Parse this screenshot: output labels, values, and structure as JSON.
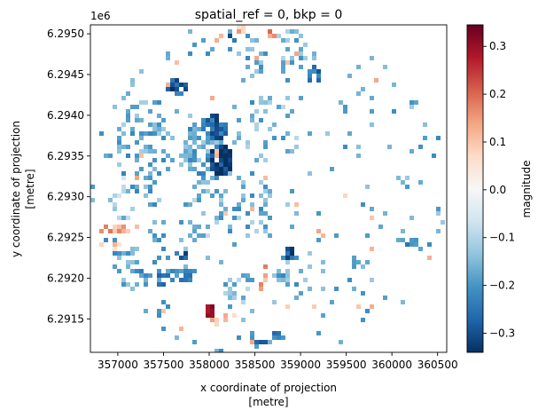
{
  "chart_data": {
    "type": "heatmap",
    "title": "spatial_ref = 0, bkp = 0",
    "xlabel": "x coordinate of projection",
    "xlabel_unit": "[metre]",
    "ylabel": "y coordinate of projection",
    "ylabel_unit": "[metre]",
    "y_offset_label": "1e6",
    "xlim": [
      356700,
      360600
    ],
    "ylim": [
      6.29109,
      6.29511
    ],
    "x_ticks": [
      {
        "value": 357000,
        "label": "357000"
      },
      {
        "value": 357500,
        "label": "357500"
      },
      {
        "value": 358000,
        "label": "358000"
      },
      {
        "value": 358500,
        "label": "358500"
      },
      {
        "value": 359000,
        "label": "359000"
      },
      {
        "value": 359500,
        "label": "359500"
      },
      {
        "value": 360000,
        "label": "360000"
      },
      {
        "value": 360500,
        "label": "360500"
      }
    ],
    "y_ticks": [
      {
        "value": 6.2915,
        "label": "6.2915"
      },
      {
        "value": 6.292,
        "label": "6.2920"
      },
      {
        "value": 6.2925,
        "label": "6.2925"
      },
      {
        "value": 6.293,
        "label": "6.2930"
      },
      {
        "value": 6.2935,
        "label": "6.2935"
      },
      {
        "value": 6.294,
        "label": "6.2940"
      },
      {
        "value": 6.2945,
        "label": "6.2945"
      },
      {
        "value": 6.295,
        "label": "6.2950"
      }
    ],
    "colorbar": {
      "label": "magnitude",
      "vmin": -0.34,
      "vmax": 0.345,
      "colormap": "RdBu_r",
      "ticks": [
        {
          "value": -0.3,
          "label": "−0.3"
        },
        {
          "value": -0.2,
          "label": "−0.2"
        },
        {
          "value": -0.1,
          "label": "−0.1"
        },
        {
          "value": 0.0,
          "label": "0.0"
        },
        {
          "value": 0.1,
          "label": "0.1"
        },
        {
          "value": 0.2,
          "label": "0.2"
        },
        {
          "value": 0.3,
          "label": "0.3"
        }
      ]
    },
    "patches": [
      {
        "x": 357650,
        "y": 6.29435,
        "rx": 110,
        "ry": 0.0001,
        "value": -0.28,
        "density": 0.85
      },
      {
        "x": 358050,
        "y": 6.29382,
        "rx": 140,
        "ry": 0.00018,
        "value": -0.27,
        "density": 0.9
      },
      {
        "x": 358100,
        "y": 6.29345,
        "rx": 170,
        "ry": 0.0002,
        "value": -0.32,
        "density": 0.9
      },
      {
        "x": 357950,
        "y": 6.29355,
        "rx": 230,
        "ry": 0.0004,
        "value": -0.18,
        "density": 0.55
      },
      {
        "x": 357300,
        "y": 6.29355,
        "rx": 320,
        "ry": 0.0007,
        "value": -0.17,
        "density": 0.22
      },
      {
        "x": 358700,
        "y": 6.2938,
        "rx": 300,
        "ry": 0.0005,
        "value": -0.15,
        "density": 0.15
      },
      {
        "x": 358900,
        "y": 6.29475,
        "rx": 220,
        "ry": 0.0003,
        "value": -0.15,
        "density": 0.2
      },
      {
        "x": 358500,
        "y": 6.29475,
        "rx": 120,
        "ry": 0.0003,
        "value": -0.18,
        "density": 0.25
      },
      {
        "x": 359150,
        "y": 6.2945,
        "rx": 70,
        "ry": 0.00012,
        "value": -0.27,
        "density": 0.85
      },
      {
        "x": 358250,
        "y": 6.29495,
        "rx": 40,
        "ry": 7e-05,
        "value": -0.28,
        "density": 0.8
      },
      {
        "x": 358350,
        "y": 6.29505,
        "rx": 40,
        "ry": 5e-05,
        "value": 0.12,
        "density": 0.6
      },
      {
        "x": 358700,
        "y": 6.295,
        "rx": 60,
        "ry": 5e-05,
        "value": 0.14,
        "density": 0.6
      },
      {
        "x": 358400,
        "y": 6.2929,
        "rx": 300,
        "ry": 0.0004,
        "value": -0.16,
        "density": 0.25
      },
      {
        "x": 357900,
        "y": 6.2928,
        "rx": 200,
        "ry": 0.00035,
        "value": -0.14,
        "density": 0.2
      },
      {
        "x": 356950,
        "y": 6.2926,
        "rx": 180,
        "ry": 7e-05,
        "value": 0.13,
        "density": 0.75
      },
      {
        "x": 356950,
        "y": 6.2924,
        "rx": 140,
        "ry": 6e-05,
        "value": 0.1,
        "density": 0.45
      },
      {
        "x": 357100,
        "y": 6.29215,
        "rx": 280,
        "ry": 0.0003,
        "value": -0.18,
        "density": 0.35
      },
      {
        "x": 357550,
        "y": 6.292,
        "rx": 200,
        "ry": 0.0001,
        "value": -0.22,
        "density": 0.55
      },
      {
        "x": 357750,
        "y": 6.29205,
        "rx": 120,
        "ry": 0.0001,
        "value": -0.2,
        "density": 0.5
      },
      {
        "x": 357700,
        "y": 6.29228,
        "rx": 60,
        "ry": 6e-05,
        "value": -0.27,
        "density": 0.6
      },
      {
        "x": 357450,
        "y": 6.2925,
        "rx": 100,
        "ry": 8e-05,
        "value": -0.22,
        "density": 0.45
      },
      {
        "x": 358020,
        "y": 6.2916,
        "rx": 60,
        "ry": 0.0001,
        "value": 0.26,
        "density": 0.9
      },
      {
        "x": 358150,
        "y": 6.2915,
        "rx": 150,
        "ry": 8e-05,
        "value": 0.1,
        "density": 0.45
      },
      {
        "x": 358350,
        "y": 6.2918,
        "rx": 220,
        "ry": 0.00025,
        "value": -0.15,
        "density": 0.25
      },
      {
        "x": 358550,
        "y": 6.29125,
        "rx": 110,
        "ry": 0.00012,
        "value": -0.24,
        "density": 0.75
      },
      {
        "x": 358750,
        "y": 6.2913,
        "rx": 50,
        "ry": 8e-05,
        "value": -0.22,
        "density": 0.6
      },
      {
        "x": 358880,
        "y": 6.2923,
        "rx": 70,
        "ry": 7e-05,
        "value": -0.28,
        "density": 0.8
      },
      {
        "x": 358900,
        "y": 6.292,
        "rx": 160,
        "ry": 0.0003,
        "value": -0.17,
        "density": 0.3
      },
      {
        "x": 358580,
        "y": 6.292,
        "rx": 60,
        "ry": 0.0002,
        "value": 0.12,
        "density": 0.3
      },
      {
        "x": 360200,
        "y": 6.29245,
        "rx": 160,
        "ry": 4e-05,
        "value": -0.2,
        "density": 0.7
      },
      {
        "x": 359600,
        "y": 6.29215,
        "rx": 150,
        "ry": 5e-05,
        "value": -0.18,
        "density": 0.45
      },
      {
        "x": 359500,
        "y": 6.293,
        "rx": 60,
        "ry": 4e-05,
        "value": 0.08,
        "density": 0.5
      },
      {
        "x": 359400,
        "y": 6.29345,
        "rx": 50,
        "ry": 3e-05,
        "value": 0.2,
        "density": 0.6
      },
      {
        "x": 359750,
        "y": 6.2939,
        "rx": 80,
        "ry": 3e-05,
        "value": -0.2,
        "density": 0.6
      },
      {
        "x": 357050,
        "y": 6.293,
        "rx": 140,
        "ry": 0.0003,
        "value": -0.12,
        "density": 0.15
      }
    ]
  }
}
